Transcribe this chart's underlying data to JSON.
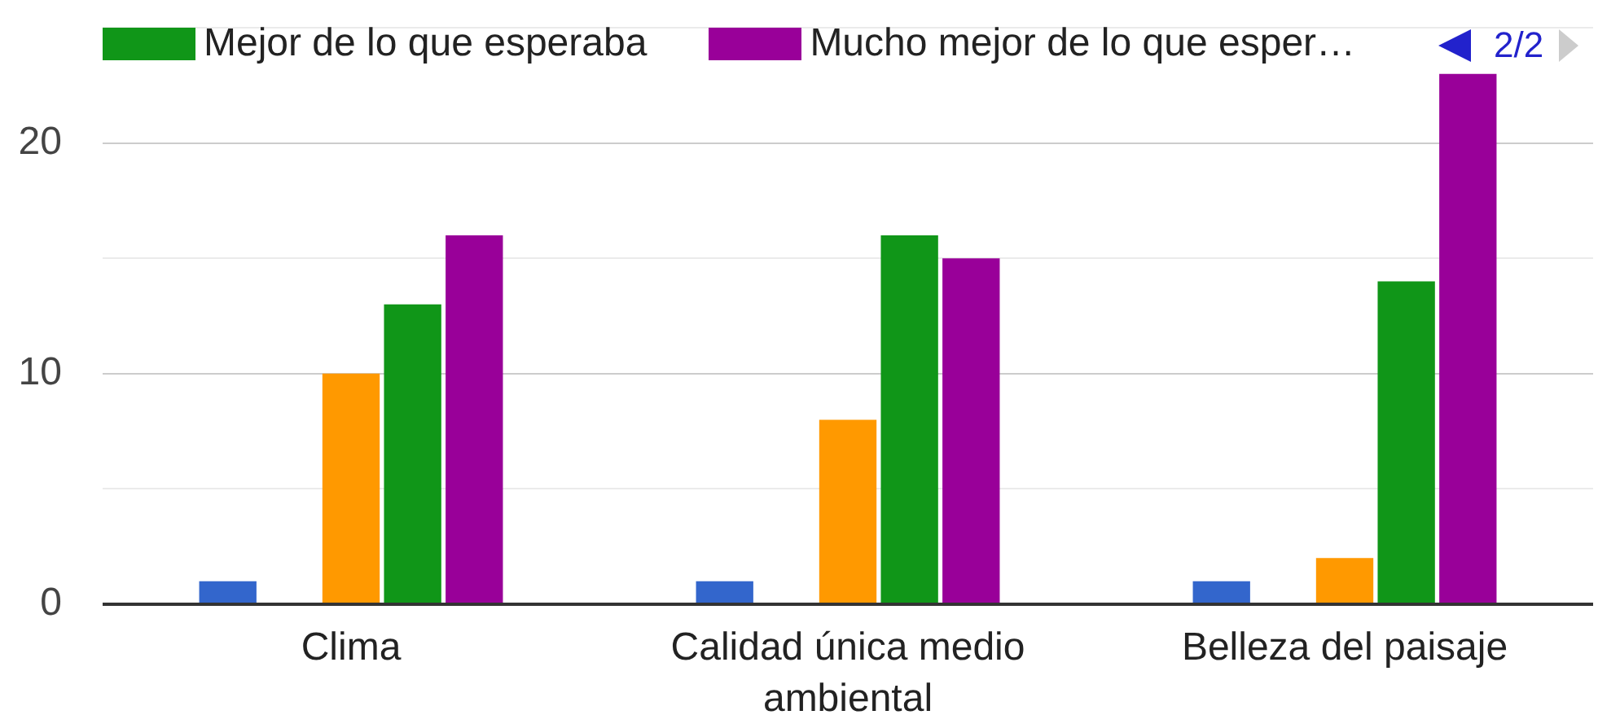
{
  "chart_data": {
    "type": "bar",
    "categories": [
      "Clima",
      "Calidad única medio ambiental",
      "Belleza del paisaje"
    ],
    "series": [
      {
        "color": "#3366cc",
        "values": [
          1,
          1,
          1
        ]
      },
      {
        "values": [
          null,
          null,
          null
        ]
      },
      {
        "color": "#ff9900",
        "values": [
          10,
          8,
          2
        ]
      },
      {
        "name": "Mejor de lo que esperaba",
        "color": "#109618",
        "values": [
          13,
          16,
          14
        ]
      },
      {
        "name": "Mucho mejor de lo que esper…",
        "color": "#990099",
        "values": [
          16,
          15,
          23
        ]
      }
    ],
    "ylim": [
      0,
      25
    ],
    "yticks": [
      0,
      {
        "value": 5,
        "label": null
      },
      10,
      {
        "value": 15,
        "label": null
      },
      20,
      {
        "value": 25,
        "label": null
      }
    ],
    "grid": "y",
    "legend": "top",
    "annotations": [
      "2/2"
    ]
  }
}
